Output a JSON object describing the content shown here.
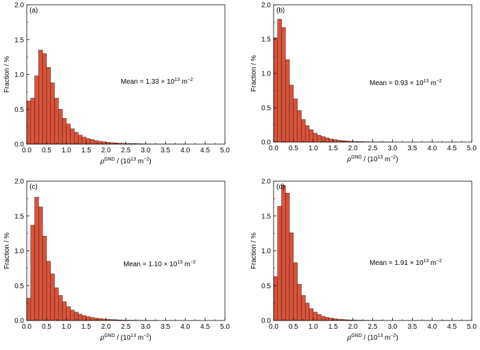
{
  "chart_data": [
    {
      "type": "bar",
      "panel_label": "(a)",
      "xlabel": {
        "rho": "ρ",
        "sup": "GND",
        "rest": " / (10",
        "exp": "13",
        "rest2": " m",
        "exp2": "−2",
        "end": ")"
      },
      "ylabel": "Fraction / %",
      "xlim": [
        0,
        5.0
      ],
      "ylim": [
        0,
        2.0
      ],
      "xticks": [
        "0.0",
        "0.5",
        "1.0",
        "1.5",
        "2.0",
        "2.5",
        "3.0",
        "3.5",
        "4.0",
        "4.5",
        "5.0"
      ],
      "yticks": [
        "0.0",
        "0.5",
        "1.0",
        "1.5",
        "2.0"
      ],
      "mean": {
        "text": "Mean = 1.33 × 10",
        "exp": "13",
        "unit": " m",
        "unit_exp": "−2"
      },
      "bin_width": 0.1,
      "bar_color": "#d9533a",
      "values": [
        0.62,
        0.66,
        0.98,
        1.35,
        1.3,
        1.1,
        0.88,
        0.66,
        0.5,
        0.37,
        0.29,
        0.22,
        0.17,
        0.13,
        0.1,
        0.08,
        0.065,
        0.05,
        0.04,
        0.033,
        0.026,
        0.021,
        0.017,
        0.014,
        0.011,
        0.009,
        0.007,
        0.006,
        0.005,
        0.004,
        0.003,
        0.0025,
        0.002,
        0.0015,
        0.001,
        0.001,
        0.001,
        0.0008,
        0.0006,
        0.0005
      ]
    },
    {
      "type": "bar",
      "panel_label": "(b)",
      "xlabel": {
        "rho": "ρ",
        "sup": "GND",
        "rest": " / (10",
        "exp": "13",
        "rest2": " m",
        "exp2": "−2",
        "end": ")"
      },
      "ylabel": "Fraction / %",
      "xlim": [
        0,
        5.0
      ],
      "ylim": [
        0,
        2.0
      ],
      "xticks": [
        "0.0",
        "0.5",
        "1.0",
        "1.5",
        "2.0",
        "2.5",
        "3.0",
        "3.5",
        "4.0",
        "4.5",
        "5.0"
      ],
      "yticks": [
        "0.0",
        "0.5",
        "1.0",
        "1.5",
        "2.0"
      ],
      "mean": {
        "text": "Mean = 0.93 × 10",
        "exp": "13",
        "unit": " m",
        "unit_exp": "−2"
      },
      "bin_width": 0.1,
      "bar_color": "#d9533a",
      "values": [
        1.52,
        1.79,
        1.67,
        1.2,
        0.83,
        0.63,
        0.46,
        0.33,
        0.24,
        0.18,
        0.13,
        0.1,
        0.08,
        0.06,
        0.045,
        0.035,
        0.027,
        0.02,
        0.016,
        0.012,
        0.009,
        0.007,
        0.005,
        0.004,
        0.003,
        0.0025,
        0.002,
        0.0015,
        0.001,
        0.001
      ]
    },
    {
      "type": "bar",
      "panel_label": "(c)",
      "xlabel": {
        "rho": "ρ",
        "sup": "GND",
        "rest": " / (10",
        "exp": "13",
        "rest2": " m",
        "exp2": "−2",
        "end": ")"
      },
      "ylabel": "Fraction / %",
      "xlim": [
        0,
        5.0
      ],
      "ylim": [
        0,
        2.0
      ],
      "xticks": [
        "0.0",
        "0.5",
        "1.0",
        "1.5",
        "2.0",
        "2.5",
        "3.0",
        "3.5",
        "4.0",
        "4.5",
        "5.0"
      ],
      "yticks": [
        "0.0",
        "0.5",
        "1.0",
        "1.5",
        "2.0"
      ],
      "mean": {
        "text": "Mean = 1.10 × 10",
        "exp": "13",
        "unit": " m",
        "unit_exp": "−2"
      },
      "bin_width": 0.1,
      "bar_color": "#d9533a",
      "values": [
        0.32,
        1.37,
        1.77,
        1.63,
        1.21,
        0.85,
        0.67,
        0.47,
        0.36,
        0.27,
        0.2,
        0.15,
        0.12,
        0.09,
        0.07,
        0.055,
        0.043,
        0.034,
        0.027,
        0.021,
        0.016,
        0.013,
        0.01,
        0.008,
        0.006,
        0.005,
        0.004,
        0.003,
        0.0025,
        0.002,
        0.0015,
        0.001,
        0.001
      ]
    },
    {
      "type": "bar",
      "panel_label": "(d)",
      "xlabel": {
        "rho": "ρ",
        "sup": "GND",
        "rest": " / (10",
        "exp": "13",
        "rest2": " m",
        "exp2": "−2",
        "end": ")"
      },
      "ylabel": "Fraction / %",
      "xlim": [
        0,
        5.0
      ],
      "ylim": [
        0,
        2.0
      ],
      "xticks": [
        "0.0",
        "0.5",
        "1.0",
        "1.5",
        "2.0",
        "2.5",
        "3.0",
        "3.5",
        "4.0",
        "4.5",
        "5.0"
      ],
      "yticks": [
        "0.0",
        "0.5",
        "1.0",
        "1.5",
        "2.0"
      ],
      "mean": {
        "text": "Mean = 1.91 × 10",
        "exp": "13",
        "unit": " m",
        "unit_exp": "−2"
      },
      "bin_width": 0.1,
      "bar_color": "#d9533a",
      "values": [
        0.63,
        1.64,
        1.94,
        1.83,
        1.26,
        0.83,
        0.52,
        0.36,
        0.25,
        0.17,
        0.12,
        0.085,
        0.06,
        0.045,
        0.033,
        0.024,
        0.018,
        0.014,
        0.01,
        0.008,
        0.006,
        0.0045,
        0.0035,
        0.0025,
        0.002,
        0.0015,
        0.001,
        0.001
      ]
    }
  ]
}
